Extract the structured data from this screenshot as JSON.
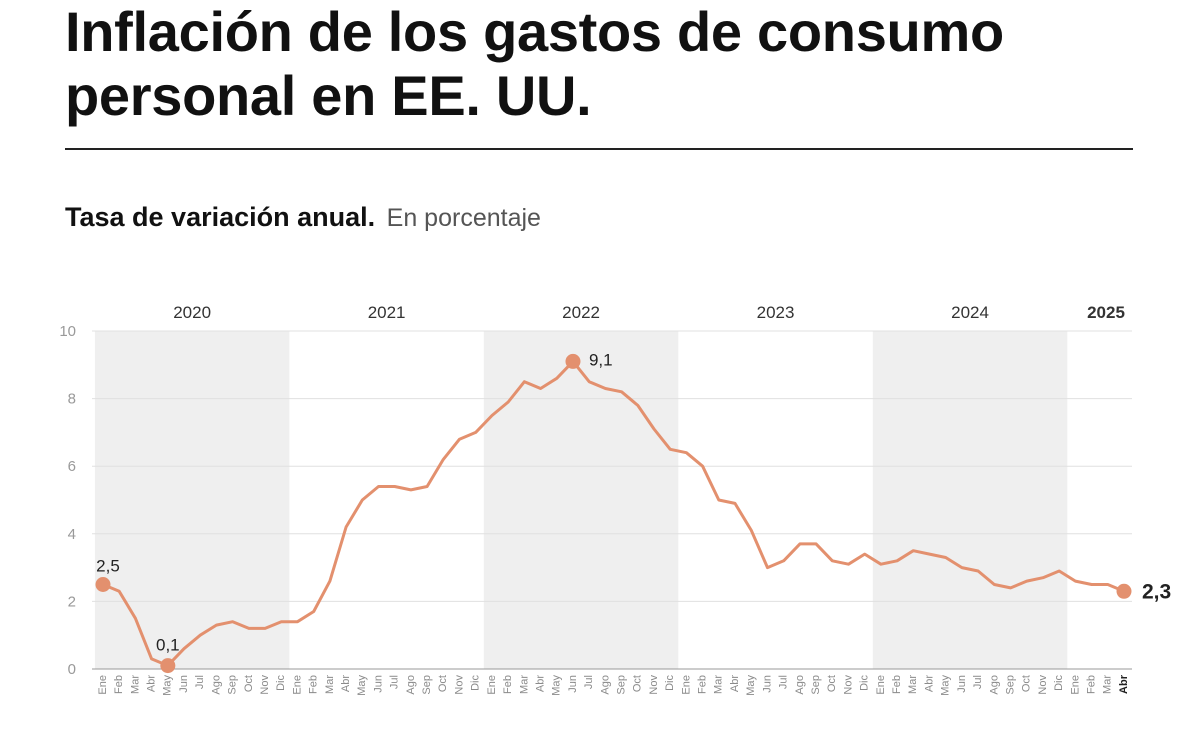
{
  "header": {
    "title": "Inflación de los gastos de consumo personal en EE. UU.",
    "subtitle_bold": "Tasa de variación anual.",
    "subtitle_unit": "En porcentaje"
  },
  "colors": {
    "line": "#e3906e",
    "band": "#efefef",
    "grid": "#e0e0e0",
    "tick": "#999999"
  },
  "chart_data": {
    "type": "line",
    "title": "Inflación de los gastos de consumo personal en EE. UU.",
    "subtitle": "Tasa de variación anual. En porcentaje",
    "ylim": [
      0,
      10
    ],
    "yticks": [
      "0",
      "2",
      "4",
      "6",
      "8",
      "10"
    ],
    "grid": true,
    "years": [
      "2020",
      "2021",
      "2022",
      "2023",
      "2024",
      "2025"
    ],
    "months": [
      "Ene",
      "Feb",
      "Mar",
      "Abr",
      "May",
      "Jun",
      "Jul",
      "Ago",
      "Sep",
      "Oct",
      "Nov",
      "Dic",
      "Ene",
      "Feb",
      "Mar",
      "Abr",
      "May",
      "Jun",
      "Jul",
      "Ago",
      "Sep",
      "Oct",
      "Nov",
      "Dic",
      "Ene",
      "Feb",
      "Mar",
      "Abr",
      "May",
      "Jun",
      "Jul",
      "Ago",
      "Sep",
      "Oct",
      "Nov",
      "Dic",
      "Ene",
      "Feb",
      "Mar",
      "Abr",
      "May",
      "Jun",
      "Jul",
      "Ago",
      "Sep",
      "Oct",
      "Nov",
      "Dic",
      "Ene",
      "Feb",
      "Mar",
      "Abr",
      "May",
      "Jun",
      "Jul",
      "Ago",
      "Sep",
      "Oct",
      "Nov",
      "Dic",
      "Ene",
      "Feb",
      "Mar",
      "Abr"
    ],
    "values": [
      2.5,
      2.3,
      1.5,
      0.3,
      0.1,
      0.6,
      1.0,
      1.3,
      1.4,
      1.2,
      1.2,
      1.4,
      1.4,
      1.7,
      2.6,
      4.2,
      5.0,
      5.4,
      5.4,
      5.3,
      5.4,
      6.2,
      6.8,
      7.0,
      7.5,
      7.9,
      8.5,
      8.3,
      8.6,
      9.1,
      8.5,
      8.3,
      8.2,
      7.8,
      7.1,
      6.5,
      6.4,
      6.0,
      5.0,
      4.9,
      4.1,
      3.0,
      3.2,
      3.7,
      3.7,
      3.2,
      3.1,
      3.4,
      3.1,
      3.2,
      3.5,
      3.4,
      3.3,
      3.0,
      2.9,
      2.5,
      2.4,
      2.6,
      2.7,
      2.9,
      2.6,
      2.5,
      2.5,
      2.3
    ],
    "annotations": [
      {
        "index": 0,
        "label": "2,5"
      },
      {
        "index": 4,
        "label": "0,1"
      },
      {
        "index": 29,
        "label": "9,1"
      },
      {
        "index": 63,
        "label": "2,3"
      }
    ]
  }
}
